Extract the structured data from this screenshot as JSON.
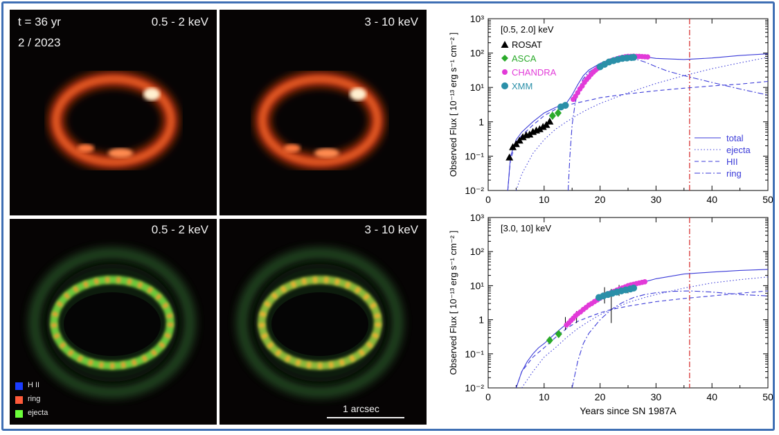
{
  "images": {
    "time_label": "t = 36 yr",
    "date_label": "2 / 2023",
    "band_soft": "0.5 - 2 keV",
    "band_hard": "3 - 10 keV",
    "scalebar_label": "1 arcsec",
    "legend": [
      {
        "label": "H II",
        "color": "#1a3cff"
      },
      {
        "label": "ring",
        "color": "#ff5a3a"
      },
      {
        "label": "ejecta",
        "color": "#6cff3a"
      }
    ]
  },
  "colors": {
    "model": "#3a3ad8",
    "marker_line": "#d42020",
    "rosat": "#000000",
    "asca": "#2aaa2a",
    "chandra": "#e23ad8",
    "xmm": "#2a8fa8",
    "frame": "#3f6fb4"
  },
  "chart_data": [
    {
      "type": "line",
      "band": "[0.5, 2.0] keV",
      "xlabel": "",
      "ylabel": "Observed Flux [ 10⁻¹³ erg s⁻¹ cm⁻² ]",
      "xlim": [
        0,
        50
      ],
      "ylim": [
        0.01,
        1000
      ],
      "yscale": "log",
      "x_ticks": [
        0,
        10,
        20,
        30,
        40,
        50
      ],
      "y_ticks": [
        "10⁻²",
        "10⁻¹",
        "1",
        "10¹",
        "10²",
        "10³"
      ],
      "vline_x": 36,
      "legend": [
        {
          "name": "total",
          "style": "solid"
        },
        {
          "name": "ejecta",
          "style": "dotted"
        },
        {
          "name": "HII",
          "style": "dashed"
        },
        {
          "name": "ring",
          "style": "dashdot"
        }
      ],
      "data_legend": [
        "ROSAT",
        "ASCA",
        "CHANDRA",
        "XMM"
      ],
      "series": [
        {
          "name": "total",
          "style": "solid",
          "x": [
            3.5,
            4,
            5,
            6,
            8,
            10,
            12,
            13,
            14,
            15,
            16,
            17,
            18,
            20,
            22,
            24,
            26,
            28,
            30,
            35,
            40,
            45,
            50
          ],
          "y": [
            0.01,
            0.1,
            0.3,
            0.5,
            1.0,
            1.8,
            2.6,
            3.0,
            3.5,
            6,
            12,
            22,
            32,
            50,
            68,
            80,
            85,
            78,
            70,
            65,
            72,
            85,
            95
          ]
        },
        {
          "name": "ejecta",
          "style": "dotted",
          "x": [
            5,
            6,
            8,
            10,
            12,
            14,
            16,
            18,
            20,
            25,
            30,
            35,
            40,
            45,
            50
          ],
          "y": [
            0.01,
            0.03,
            0.12,
            0.3,
            0.6,
            1.0,
            1.6,
            2.4,
            3.4,
            7,
            13,
            22,
            35,
            52,
            75
          ]
        },
        {
          "name": "HII",
          "style": "dashed",
          "x": [
            3.5,
            4,
            5,
            6,
            8,
            10,
            12,
            14,
            16,
            18,
            20,
            25,
            30,
            35,
            40,
            45,
            50
          ],
          "y": [
            0.01,
            0.08,
            0.25,
            0.4,
            0.8,
            1.5,
            2.3,
            3.0,
            3.6,
            4.2,
            5.0,
            6.5,
            8.0,
            9.5,
            11,
            12.5,
            15
          ]
        },
        {
          "name": "ring",
          "style": "dashdot",
          "x": [
            14.3,
            14.6,
            15,
            15.5,
            16,
            17,
            18,
            20,
            22,
            24,
            26,
            28,
            30,
            32,
            35,
            40,
            45,
            50
          ],
          "y": [
            0.01,
            0.1,
            0.8,
            3,
            8,
            18,
            28,
            45,
            60,
            68,
            70,
            55,
            40,
            30,
            22,
            14,
            9,
            6
          ]
        }
      ],
      "points": [
        {
          "name": "ROSAT",
          "marker": "triangle",
          "x": [
            3.8,
            4.4,
            5.0,
            5.6,
            6.2,
            6.8,
            7.4,
            8.0,
            8.6,
            9.2,
            9.8,
            10.4,
            11.0
          ],
          "y": [
            0.09,
            0.18,
            0.22,
            0.28,
            0.35,
            0.4,
            0.42,
            0.5,
            0.55,
            0.6,
            0.7,
            0.8,
            1.0
          ]
        },
        {
          "name": "ASCA",
          "marker": "diamond",
          "x": [
            11.5,
            12.5
          ],
          "y": [
            1.5,
            1.8
          ]
        },
        {
          "name": "CHANDRA",
          "marker": "circle",
          "x": [
            15.2,
            15.6,
            16.0,
            16.4,
            16.8,
            17.2,
            17.6,
            18.0,
            18.4,
            18.8,
            19.2,
            19.6,
            20.0,
            20.5,
            21.0,
            21.5,
            22.0,
            22.5,
            23.0,
            23.5,
            24.0,
            24.5,
            25.0,
            25.5,
            26.0,
            26.5,
            27.0,
            27.5,
            28.0,
            28.5
          ],
          "y": [
            4.5,
            5.5,
            7,
            9,
            11,
            14,
            17,
            20,
            24,
            28,
            32,
            36,
            40,
            45,
            50,
            55,
            60,
            64,
            68,
            72,
            75,
            78,
            80,
            80,
            81,
            80,
            80,
            79,
            78,
            77
          ]
        },
        {
          "name": "XMM",
          "marker": "circle",
          "x": [
            13.0,
            13.8,
            20.0,
            20.8,
            21.6,
            22.4,
            23.2,
            24.0,
            24.8,
            25.6,
            26.0
          ],
          "y": [
            2.7,
            3.0,
            40,
            47,
            55,
            60,
            65,
            70,
            72,
            74,
            75
          ]
        }
      ]
    },
    {
      "type": "line",
      "band": "[3.0, 10] keV",
      "xlabel": "Years since SN 1987A",
      "ylabel": "Observed Flux [ 10⁻¹³ erg s⁻¹ cm⁻² ]",
      "xlim": [
        0,
        50
      ],
      "ylim": [
        0.01,
        1000
      ],
      "yscale": "log",
      "x_ticks": [
        0,
        10,
        20,
        30,
        40,
        50
      ],
      "y_ticks": [
        "10⁻²",
        "10⁻¹",
        "1",
        "10¹",
        "10²",
        "10³"
      ],
      "vline_x": 36,
      "series": [
        {
          "name": "total",
          "style": "solid",
          "x": [
            5,
            6,
            7,
            8,
            9,
            10,
            11,
            12,
            13,
            14,
            15,
            16,
            18,
            20,
            22,
            24,
            26,
            28,
            30,
            35,
            40,
            45,
            50
          ],
          "y": [
            0.01,
            0.03,
            0.06,
            0.1,
            0.15,
            0.2,
            0.28,
            0.4,
            0.55,
            0.75,
            1.0,
            1.4,
            2.4,
            4,
            6,
            8,
            10,
            13,
            16,
            22,
            25,
            28,
            30
          ]
        },
        {
          "name": "ejecta",
          "style": "dotted",
          "x": [
            6,
            8,
            10,
            12,
            14,
            16,
            18,
            20,
            22,
            25,
            28,
            30,
            35,
            40,
            45,
            50
          ],
          "y": [
            0.01,
            0.03,
            0.08,
            0.15,
            0.3,
            0.55,
            0.9,
            1.4,
            2.0,
            3.2,
            4.5,
            5.5,
            8.5,
            12,
            15,
            18
          ]
        },
        {
          "name": "HII",
          "style": "dashed",
          "x": [
            5,
            6,
            8,
            10,
            12,
            14,
            16,
            18,
            20,
            22,
            25,
            28,
            30,
            35,
            40,
            45,
            50
          ],
          "y": [
            0.01,
            0.03,
            0.08,
            0.15,
            0.3,
            0.55,
            0.9,
            1.2,
            1.6,
            2.0,
            2.5,
            3.0,
            3.4,
            4.2,
            5.0,
            6.0,
            7.0
          ]
        },
        {
          "name": "ring",
          "style": "dashdot",
          "x": [
            15,
            16,
            17,
            18,
            20,
            22,
            24,
            26,
            28,
            30,
            33,
            36,
            40,
            45,
            50
          ],
          "y": [
            0.01,
            0.06,
            0.2,
            0.4,
            1.0,
            2.0,
            3.2,
            4.5,
            5.5,
            6.2,
            6.8,
            7.0,
            6.5,
            5.5,
            5.0
          ]
        }
      ],
      "points": [
        {
          "name": "ASCA",
          "marker": "diamond",
          "x": [
            11.0,
            12.6
          ],
          "y": [
            0.25,
            0.38
          ]
        },
        {
          "name": "CHANDRA",
          "marker": "circle",
          "x": [
            14.0,
            14.4,
            14.8,
            15.2,
            15.6,
            16.0,
            16.5,
            17.0,
            17.5,
            18.0,
            18.5,
            19.0,
            19.5,
            20.0,
            20.5,
            21.0,
            21.5,
            22.0,
            22.5,
            23.0,
            23.5,
            24.0,
            24.5,
            25.0,
            25.5,
            26.0,
            26.5,
            27.0,
            27.5,
            28.0
          ],
          "y": [
            0.7,
            0.8,
            0.95,
            1.1,
            1.3,
            1.5,
            1.7,
            2.0,
            2.3,
            2.7,
            3.0,
            3.4,
            3.8,
            4.3,
            4.8,
            5.3,
            5.8,
            6.3,
            6.8,
            7.4,
            8.0,
            8.6,
            9.2,
            10,
            10.5,
            11,
            11.5,
            12,
            12.5,
            13
          ]
        },
        {
          "name": "XMM",
          "marker": "circle",
          "x": [
            19.8,
            20.6,
            21.4,
            22.2,
            23.0,
            23.8,
            24.6,
            25.4,
            26.0
          ],
          "y": [
            4.5,
            5.0,
            5.5,
            6.0,
            6.5,
            7.0,
            7.5,
            8.0,
            8.5
          ]
        }
      ],
      "error_bars": [
        {
          "x": 13.8,
          "lo": 0.5,
          "hi": 1.2
        },
        {
          "x": 15.8,
          "lo": 0.8,
          "hi": 1.8
        },
        {
          "x": 22.0,
          "lo": 0.8,
          "hi": 8.0
        },
        {
          "x": 20.8,
          "lo": 3.0,
          "hi": 9.0
        },
        {
          "x": 23.4,
          "lo": 5.0,
          "hi": 10.5
        },
        {
          "x": 25.0,
          "lo": 6.0,
          "hi": 11.0
        }
      ]
    }
  ]
}
